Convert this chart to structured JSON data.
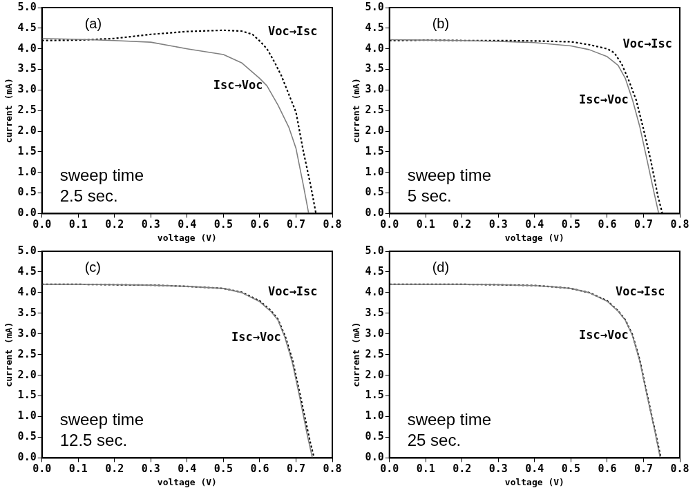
{
  "chart_data": [
    {
      "type": "line",
      "xlabel": "voltage (V)",
      "ylabel": "current (mA)",
      "xlim": [
        0,
        0.8
      ],
      "ylim": [
        0,
        5
      ],
      "grid": false,
      "legend": false,
      "marker": "none",
      "xticks": [
        {
          "value": 0,
          "label": "0.0"
        },
        {
          "value": 0.1,
          "label": "0.1"
        },
        {
          "value": 0.2,
          "label": "0.2"
        },
        {
          "value": 0.3,
          "label": "0.3"
        },
        {
          "value": 0.4,
          "label": "0.4"
        },
        {
          "value": 0.5,
          "label": "0.5"
        },
        {
          "value": 0.6,
          "label": "0.6"
        },
        {
          "value": 0.7,
          "label": "0.7"
        },
        {
          "value": 0.8,
          "label": "0.8"
        }
      ],
      "yticks": [
        {
          "value": 0,
          "label": "0.0"
        },
        {
          "value": 0.5,
          "label": "0.5"
        },
        {
          "value": 1,
          "label": "1.0"
        },
        {
          "value": 1.5,
          "label": "1.5"
        },
        {
          "value": 2,
          "label": "2.0"
        },
        {
          "value": 2.5,
          "label": "2.5"
        },
        {
          "value": 3,
          "label": "3.0"
        },
        {
          "value": 3.5,
          "label": "3.5"
        },
        {
          "value": 4,
          "label": "4.0"
        },
        {
          "value": 4.5,
          "label": "4.5"
        },
        {
          "value": 5,
          "label": "5.0"
        }
      ],
      "annotations": [
        "(a)",
        "sweep time",
        "2.5 sec."
      ],
      "series": [
        {
          "name": "Isc→Voc",
          "color": "#808080",
          "line_style": "solid",
          "x": [
            0,
            0.1,
            0.2,
            0.3,
            0.4,
            0.5,
            0.55,
            0.6,
            0.62,
            0.65,
            0.68,
            0.7,
            0.72,
            0.735
          ],
          "values": [
            4.25,
            4.23,
            4.2,
            4.16,
            4.0,
            3.86,
            3.66,
            3.28,
            3.1,
            2.64,
            2.1,
            1.58,
            0.7,
            0
          ]
        },
        {
          "name": "Voc→Isc",
          "color": "#000000",
          "line_style": "dotted",
          "x": [
            0,
            0.1,
            0.2,
            0.3,
            0.4,
            0.5,
            0.55,
            0.58,
            0.6,
            0.62,
            0.64,
            0.66,
            0.68,
            0.7,
            0.72,
            0.74,
            0.755
          ],
          "values": [
            4.2,
            4.21,
            4.25,
            4.35,
            4.42,
            4.45,
            4.43,
            4.35,
            4.19,
            4.0,
            3.69,
            3.34,
            2.9,
            2.46,
            1.52,
            0.7,
            0
          ]
        }
      ]
    },
    {
      "type": "line",
      "xlabel": "voltage (V)",
      "ylabel": "current (mA)",
      "xlim": [
        0,
        0.8
      ],
      "ylim": [
        0,
        5
      ],
      "grid": false,
      "legend": false,
      "marker": "none",
      "xticks": [
        {
          "value": 0,
          "label": "0.0"
        },
        {
          "value": 0.1,
          "label": "0.1"
        },
        {
          "value": 0.2,
          "label": "0.2"
        },
        {
          "value": 0.3,
          "label": "0.3"
        },
        {
          "value": 0.4,
          "label": "0.4"
        },
        {
          "value": 0.5,
          "label": "0.5"
        },
        {
          "value": 0.6,
          "label": "0.6"
        },
        {
          "value": 0.7,
          "label": "0.7"
        },
        {
          "value": 0.8,
          "label": "0.8"
        }
      ],
      "yticks": [
        {
          "value": 0,
          "label": "0.0"
        },
        {
          "value": 0.5,
          "label": "0.5"
        },
        {
          "value": 1,
          "label": "1.0"
        },
        {
          "value": 1.5,
          "label": "1.5"
        },
        {
          "value": 2,
          "label": "2.0"
        },
        {
          "value": 2.5,
          "label": "2.5"
        },
        {
          "value": 3,
          "label": "3.0"
        },
        {
          "value": 3.5,
          "label": "3.5"
        },
        {
          "value": 4,
          "label": "4.0"
        },
        {
          "value": 4.5,
          "label": "4.5"
        },
        {
          "value": 5,
          "label": "5.0"
        }
      ],
      "annotations": [
        "(b)",
        "sweep time",
        "5 sec."
      ],
      "series": [
        {
          "name": "Isc→Voc",
          "color": "#808080",
          "line_style": "solid",
          "x": [
            0,
            0.1,
            0.2,
            0.3,
            0.4,
            0.5,
            0.55,
            0.6,
            0.63,
            0.65,
            0.67,
            0.69,
            0.71,
            0.73,
            0.742
          ],
          "values": [
            4.22,
            4.21,
            4.2,
            4.18,
            4.15,
            4.07,
            3.98,
            3.81,
            3.6,
            3.28,
            2.75,
            2.1,
            1.29,
            0.47,
            0
          ]
        },
        {
          "name": "Voc→Isc",
          "color": "#000000",
          "line_style": "dotted",
          "x": [
            0,
            0.1,
            0.2,
            0.3,
            0.4,
            0.5,
            0.55,
            0.6,
            0.62,
            0.64,
            0.66,
            0.68,
            0.7,
            0.72,
            0.74,
            0.752
          ],
          "values": [
            4.2,
            4.21,
            4.2,
            4.2,
            4.19,
            4.17,
            4.1,
            4.0,
            3.9,
            3.63,
            3.22,
            2.75,
            2.05,
            1.29,
            0.41,
            0
          ]
        }
      ]
    },
    {
      "type": "line",
      "xlabel": "voltage (V)",
      "ylabel": "current (mA)",
      "xlim": [
        0,
        0.8
      ],
      "ylim": [
        0,
        5
      ],
      "grid": false,
      "legend": false,
      "marker": "none",
      "xticks": [
        {
          "value": 0,
          "label": "0.0"
        },
        {
          "value": 0.1,
          "label": "0.1"
        },
        {
          "value": 0.2,
          "label": "0.2"
        },
        {
          "value": 0.3,
          "label": "0.3"
        },
        {
          "value": 0.4,
          "label": "0.4"
        },
        {
          "value": 0.5,
          "label": "0.5"
        },
        {
          "value": 0.6,
          "label": "0.6"
        },
        {
          "value": 0.7,
          "label": "0.7"
        },
        {
          "value": 0.8,
          "label": "0.8"
        }
      ],
      "yticks": [
        {
          "value": 0,
          "label": "0.0"
        },
        {
          "value": 0.5,
          "label": "0.5"
        },
        {
          "value": 1,
          "label": "1.0"
        },
        {
          "value": 1.5,
          "label": "1.5"
        },
        {
          "value": 2,
          "label": "2.0"
        },
        {
          "value": 2.5,
          "label": "2.5"
        },
        {
          "value": 3,
          "label": "3.0"
        },
        {
          "value": 3.5,
          "label": "3.5"
        },
        {
          "value": 4,
          "label": "4.0"
        },
        {
          "value": 4.5,
          "label": "4.5"
        },
        {
          "value": 5,
          "label": "5.0"
        }
      ],
      "annotations": [
        "(c)",
        "sweep time",
        "12.5 sec."
      ],
      "series": [
        {
          "name": "Isc→Voc",
          "color": "#808080",
          "line_style": "solid",
          "x": [
            0,
            0.1,
            0.2,
            0.3,
            0.4,
            0.5,
            0.55,
            0.6,
            0.63,
            0.65,
            0.67,
            0.69,
            0.71,
            0.73,
            0.745
          ],
          "values": [
            4.2,
            4.2,
            4.19,
            4.18,
            4.15,
            4.1,
            4.0,
            3.78,
            3.55,
            3.34,
            2.9,
            2.3,
            1.48,
            0.6,
            0
          ]
        },
        {
          "name": "Voc→Isc",
          "color": "#000000",
          "line_style": "dotted",
          "x": [
            0,
            0.1,
            0.2,
            0.3,
            0.4,
            0.5,
            0.55,
            0.6,
            0.63,
            0.65,
            0.67,
            0.69,
            0.71,
            0.73,
            0.74,
            0.75
          ],
          "values": [
            4.2,
            4.2,
            4.19,
            4.18,
            4.15,
            4.1,
            4.01,
            3.8,
            3.57,
            3.36,
            2.95,
            2.38,
            1.58,
            0.75,
            0.35,
            0
          ]
        }
      ]
    },
    {
      "type": "line",
      "xlabel": "voltage (V)",
      "ylabel": "current (mA)",
      "xlim": [
        0,
        0.8
      ],
      "ylim": [
        0,
        5
      ],
      "grid": false,
      "legend": false,
      "marker": "none",
      "xticks": [
        {
          "value": 0,
          "label": "0.0"
        },
        {
          "value": 0.1,
          "label": "0.1"
        },
        {
          "value": 0.2,
          "label": "0.2"
        },
        {
          "value": 0.3,
          "label": "0.3"
        },
        {
          "value": 0.4,
          "label": "0.4"
        },
        {
          "value": 0.5,
          "label": "0.5"
        },
        {
          "value": 0.6,
          "label": "0.6"
        },
        {
          "value": 0.7,
          "label": "0.7"
        },
        {
          "value": 0.8,
          "label": "0.8"
        }
      ],
      "yticks": [
        {
          "value": 0,
          "label": "0.0"
        },
        {
          "value": 0.5,
          "label": "0.5"
        },
        {
          "value": 1,
          "label": "1.0"
        },
        {
          "value": 1.5,
          "label": "1.5"
        },
        {
          "value": 2,
          "label": "2.0"
        },
        {
          "value": 2.5,
          "label": "2.5"
        },
        {
          "value": 3,
          "label": "3.0"
        },
        {
          "value": 3.5,
          "label": "3.5"
        },
        {
          "value": 4,
          "label": "4.0"
        },
        {
          "value": 4.5,
          "label": "4.5"
        },
        {
          "value": 5,
          "label": "5.0"
        }
      ],
      "annotations": [
        "(d)",
        "sweep time",
        "25 sec."
      ],
      "series": [
        {
          "name": "Isc→Voc",
          "color": "#808080",
          "line_style": "solid",
          "x": [
            0,
            0.1,
            0.2,
            0.3,
            0.4,
            0.45,
            0.5,
            0.55,
            0.6,
            0.63,
            0.65,
            0.67,
            0.69,
            0.71,
            0.73,
            0.746
          ],
          "values": [
            4.2,
            4.2,
            4.2,
            4.19,
            4.17,
            4.14,
            4.1,
            4.0,
            3.79,
            3.55,
            3.33,
            2.95,
            2.33,
            1.5,
            0.7,
            0
          ]
        },
        {
          "name": "Voc→Isc",
          "color": "#000000",
          "line_style": "dotted",
          "x": [
            0,
            0.1,
            0.2,
            0.3,
            0.4,
            0.45,
            0.5,
            0.55,
            0.6,
            0.63,
            0.65,
            0.67,
            0.69,
            0.71,
            0.73,
            0.748
          ],
          "values": [
            4.2,
            4.2,
            4.2,
            4.19,
            4.17,
            4.14,
            4.1,
            4.0,
            3.8,
            3.56,
            3.34,
            2.97,
            2.36,
            1.53,
            0.73,
            0
          ]
        }
      ]
    }
  ]
}
